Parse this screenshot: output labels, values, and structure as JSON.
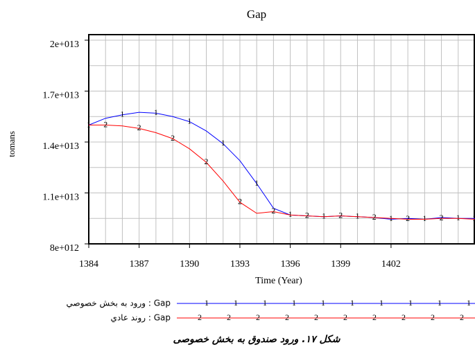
{
  "chart_data": {
    "type": "line",
    "title": "Gap",
    "x_label": "Time (Year)",
    "y_label": "tomans",
    "x": [
      1384,
      1385,
      1386,
      1387,
      1388,
      1389,
      1390,
      1391,
      1392,
      1393,
      1394,
      1395,
      1396,
      1397,
      1398,
      1399,
      1400,
      1401,
      1402,
      1403,
      1404,
      1405,
      1406,
      1407
    ],
    "xlim": [
      1384,
      1407
    ],
    "xticks": [
      1384,
      1387,
      1390,
      1393,
      1396,
      1399,
      1402
    ],
    "ylim": [
      8000000000000,
      20000000000000
    ],
    "yticks": [
      {
        "value": 8000000000000,
        "label": "8e+012"
      },
      {
        "value": 11000000000000,
        "label": "1.1e+013"
      },
      {
        "value": 14000000000000,
        "label": "1.4e+013"
      },
      {
        "value": 17000000000000,
        "label": "1.7e+013"
      },
      {
        "value": 20000000000000,
        "label": "2e+013"
      }
    ],
    "grid": true,
    "xgrid_interval": 1,
    "ygrid_interval": 1500000000000,
    "series": [
      {
        "name": "ورود به بخش خصوصي : Gap",
        "marker": "1",
        "color": "#0000ff",
        "values": [
          15000000000000,
          15400000000000,
          15600000000000,
          15750000000000,
          15700000000000,
          15500000000000,
          15200000000000,
          14650000000000,
          13900000000000,
          12900000000000,
          11550000000000,
          10100000000000,
          9700000000000,
          9650000000000,
          9600000000000,
          9650000000000,
          9600000000000,
          9550000000000,
          9450000000000,
          9500000000000,
          9450000000000,
          9550000000000,
          9500000000000,
          9500000000000
        ]
      },
      {
        "name": "روند عادي : Gap",
        "marker": "2",
        "color": "#ff0000",
        "values": [
          15000000000000,
          15000000000000,
          14950000000000,
          14800000000000,
          14550000000000,
          14200000000000,
          13600000000000,
          12800000000000,
          11700000000000,
          10450000000000,
          9800000000000,
          9900000000000,
          9700000000000,
          9650000000000,
          9600000000000,
          9650000000000,
          9600000000000,
          9550000000000,
          9500000000000,
          9450000000000,
          9450000000000,
          9500000000000,
          9500000000000,
          9450000000000
        ]
      }
    ],
    "caption": "شکل ۱۷. ورود صندوق به بخش خصوصی"
  }
}
